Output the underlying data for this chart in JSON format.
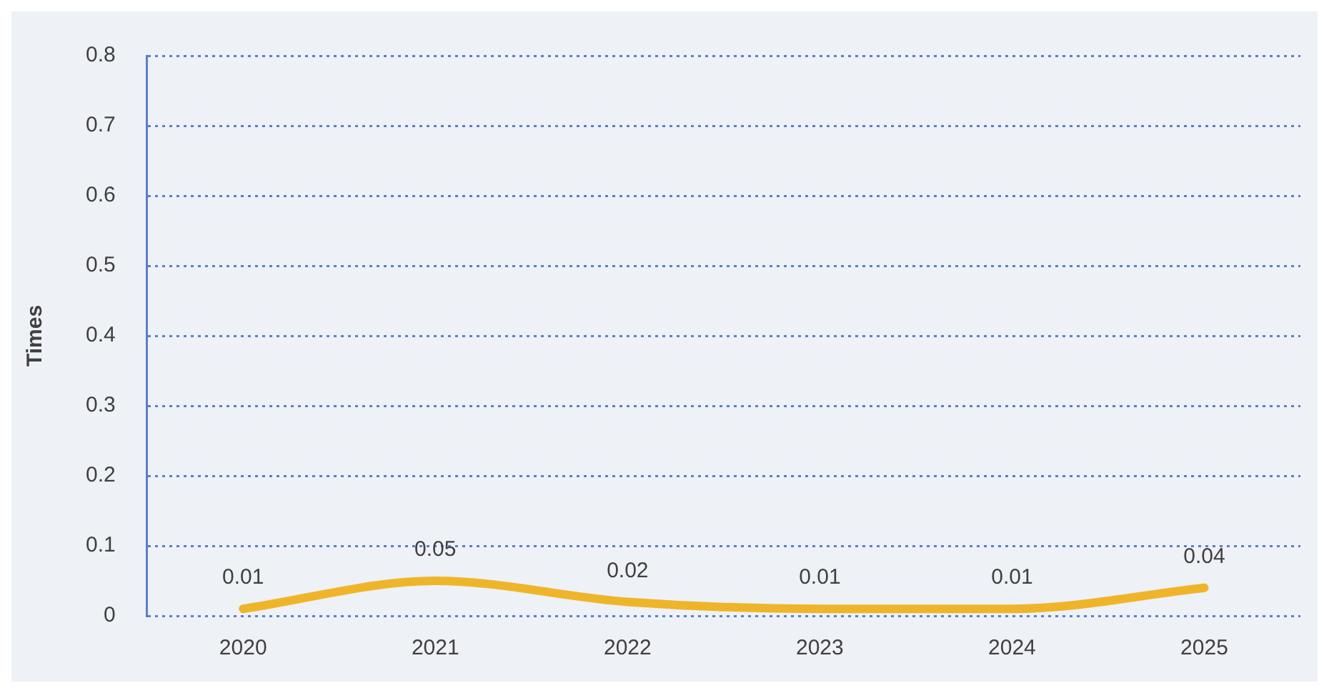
{
  "chart_data": {
    "type": "line",
    "ylabel": "Times",
    "categories": [
      "2020",
      "2021",
      "2022",
      "2023",
      "2024",
      "2025"
    ],
    "series": [
      {
        "color": "#efb52a",
        "values": [
          0.01,
          0.05,
          0.02,
          0.01,
          0.01,
          0.04
        ]
      }
    ],
    "ylim": [
      0,
      0.8
    ],
    "yticks": [
      0,
      0.1,
      0.2,
      0.3,
      0.4,
      0.5,
      0.6,
      0.7,
      0.8
    ],
    "grid": "y",
    "data_labels": true,
    "legend": false,
    "marker": "none",
    "line_style": "solid"
  }
}
